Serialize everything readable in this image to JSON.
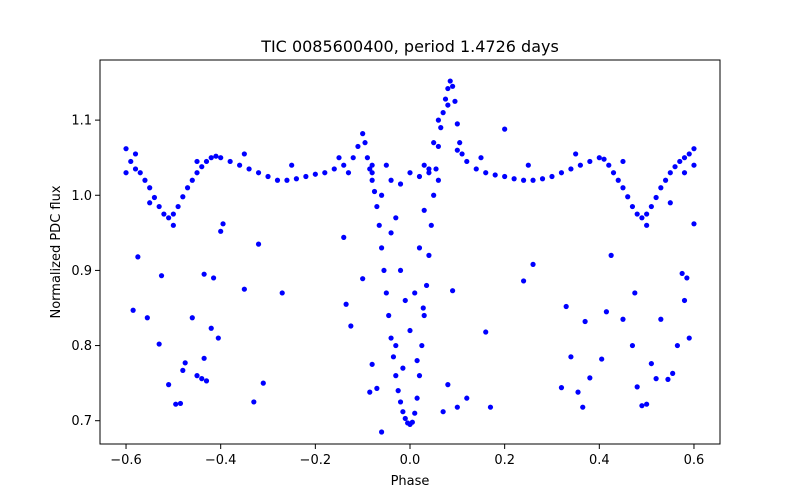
{
  "chart_data": {
    "type": "scatter",
    "title": "TIC 0085600400, period 1.4726 days",
    "xlabel": "Phase",
    "ylabel": "Normalized PDC flux",
    "xlim": [
      -0.655,
      0.655
    ],
    "ylim": [
      0.669,
      1.18
    ],
    "xticks": [
      -0.6,
      -0.4,
      -0.2,
      0.0,
      0.2,
      0.4,
      0.6
    ],
    "xtick_labels": [
      "−0.6",
      "−0.4",
      "−0.2",
      "0.0",
      "0.2",
      "0.4",
      "0.6"
    ],
    "yticks": [
      0.7,
      0.8,
      0.9,
      1.0,
      1.1
    ],
    "ytick_labels": [
      "0.7",
      "0.8",
      "0.9",
      "1.0",
      "1.1"
    ],
    "grid": false,
    "marker_color": "#0000ff",
    "series": [
      {
        "points": [
          [
            -0.6,
            1.062
          ],
          [
            -0.59,
            1.045
          ],
          [
            -0.58,
            1.035
          ],
          [
            -0.57,
            1.03
          ],
          [
            -0.56,
            1.02
          ],
          [
            -0.55,
            1.01
          ],
          [
            -0.54,
            0.997
          ],
          [
            -0.53,
            0.985
          ],
          [
            -0.52,
            0.975
          ],
          [
            -0.51,
            0.97
          ],
          [
            -0.5,
            0.975
          ],
          [
            -0.49,
            0.985
          ],
          [
            -0.48,
            0.998
          ],
          [
            -0.47,
            1.01
          ],
          [
            -0.46,
            1.02
          ],
          [
            -0.45,
            1.03
          ],
          [
            -0.44,
            1.038
          ],
          [
            -0.43,
            1.045
          ],
          [
            -0.42,
            1.05
          ],
          [
            -0.41,
            1.052
          ],
          [
            -0.4,
            1.05
          ],
          [
            -0.38,
            1.045
          ],
          [
            -0.36,
            1.04
          ],
          [
            -0.34,
            1.035
          ],
          [
            -0.32,
            1.03
          ],
          [
            -0.3,
            1.025
          ],
          [
            -0.28,
            1.02
          ],
          [
            -0.26,
            1.02
          ],
          [
            -0.24,
            1.022
          ],
          [
            -0.22,
            1.025
          ],
          [
            -0.2,
            1.028
          ],
          [
            -0.18,
            1.03
          ],
          [
            -0.16,
            1.035
          ],
          [
            -0.14,
            1.04
          ],
          [
            -0.12,
            1.05
          ],
          [
            -0.11,
            1.065
          ],
          [
            -0.1,
            1.082
          ],
          [
            -0.095,
            1.07
          ],
          [
            -0.09,
            1.05
          ],
          [
            -0.085,
            1.035
          ],
          [
            -0.08,
            1.02
          ],
          [
            -0.075,
            1.005
          ],
          [
            -0.07,
            0.985
          ],
          [
            -0.065,
            0.96
          ],
          [
            -0.06,
            0.93
          ],
          [
            -0.055,
            0.9
          ],
          [
            -0.05,
            0.87
          ],
          [
            -0.045,
            0.84
          ],
          [
            -0.04,
            0.81
          ],
          [
            -0.035,
            0.785
          ],
          [
            -0.03,
            0.76
          ],
          [
            -0.025,
            0.74
          ],
          [
            -0.02,
            0.725
          ],
          [
            -0.015,
            0.712
          ],
          [
            -0.01,
            0.703
          ],
          [
            -0.005,
            0.697
          ],
          [
            0.0,
            0.695
          ],
          [
            0.005,
            0.698
          ],
          [
            0.01,
            0.71
          ],
          [
            0.015,
            0.73
          ],
          [
            0.02,
            0.76
          ],
          [
            0.025,
            0.8
          ],
          [
            0.03,
            0.84
          ],
          [
            0.035,
            0.88
          ],
          [
            0.04,
            0.92
          ],
          [
            0.045,
            0.96
          ],
          [
            0.05,
            1.0
          ],
          [
            0.055,
            1.035
          ],
          [
            0.06,
            1.065
          ],
          [
            0.065,
            1.09
          ],
          [
            0.07,
            1.11
          ],
          [
            0.075,
            1.128
          ],
          [
            0.08,
            1.142
          ],
          [
            0.085,
            1.152
          ],
          [
            0.09,
            1.145
          ],
          [
            0.095,
            1.125
          ],
          [
            0.1,
            1.095
          ],
          [
            0.105,
            1.07
          ],
          [
            0.11,
            1.055
          ],
          [
            0.12,
            1.045
          ],
          [
            0.14,
            1.035
          ],
          [
            0.16,
            1.03
          ],
          [
            0.18,
            1.027
          ],
          [
            0.2,
            1.025
          ],
          [
            0.22,
            1.022
          ],
          [
            0.24,
            1.02
          ],
          [
            0.26,
            1.02
          ],
          [
            0.28,
            1.022
          ],
          [
            0.3,
            1.025
          ],
          [
            0.32,
            1.03
          ],
          [
            0.34,
            1.035
          ],
          [
            0.36,
            1.04
          ],
          [
            0.38,
            1.045
          ],
          [
            0.4,
            1.05
          ],
          [
            0.41,
            1.048
          ],
          [
            0.42,
            1.04
          ],
          [
            0.43,
            1.03
          ],
          [
            0.44,
            1.02
          ],
          [
            0.45,
            1.01
          ],
          [
            0.46,
            0.998
          ],
          [
            0.47,
            0.985
          ],
          [
            0.48,
            0.975
          ],
          [
            0.49,
            0.97
          ],
          [
            0.5,
            0.975
          ],
          [
            0.51,
            0.985
          ],
          [
            0.52,
            0.997
          ],
          [
            0.53,
            1.01
          ],
          [
            0.54,
            1.02
          ],
          [
            0.55,
            1.03
          ],
          [
            0.56,
            1.038
          ],
          [
            0.57,
            1.045
          ],
          [
            0.58,
            1.05
          ],
          [
            0.59,
            1.055
          ],
          [
            0.6,
            1.062
          ],
          [
            -0.6,
            1.03
          ],
          [
            -0.58,
            1.055
          ],
          [
            -0.55,
            0.99
          ],
          [
            -0.5,
            0.96
          ],
          [
            -0.45,
            1.045
          ],
          [
            -0.35,
            1.055
          ],
          [
            -0.25,
            1.04
          ],
          [
            -0.15,
            1.05
          ],
          [
            -0.13,
            1.03
          ],
          [
            -0.08,
            1.04
          ],
          [
            -0.06,
            1.0
          ],
          [
            -0.04,
            0.95
          ],
          [
            -0.02,
            0.9
          ],
          [
            -0.01,
            0.86
          ],
          [
            0.0,
            0.82
          ],
          [
            0.01,
            0.87
          ],
          [
            0.02,
            0.93
          ],
          [
            0.03,
            0.98
          ],
          [
            0.04,
            1.03
          ],
          [
            0.05,
            1.07
          ],
          [
            0.06,
            1.1
          ],
          [
            0.08,
            1.12
          ],
          [
            0.1,
            1.06
          ],
          [
            0.15,
            1.05
          ],
          [
            0.25,
            1.04
          ],
          [
            0.35,
            1.055
          ],
          [
            0.45,
            1.045
          ],
          [
            0.5,
            0.96
          ],
          [
            0.55,
            0.99
          ],
          [
            0.58,
            1.03
          ],
          [
            0.6,
            1.04
          ],
          [
            -0.08,
            1.03
          ],
          [
            -0.04,
            1.02
          ],
          [
            -0.02,
            1.015
          ],
          [
            0.0,
            1.03
          ],
          [
            0.02,
            1.025
          ],
          [
            0.04,
            1.035
          ],
          [
            -0.03,
            0.8
          ],
          [
            -0.015,
            0.77
          ],
          [
            0.015,
            0.78
          ],
          [
            0.028,
            0.85
          ],
          [
            -0.05,
            1.04
          ],
          [
            0.03,
            1.04
          ],
          [
            -0.03,
            0.97
          ],
          [
            0.06,
            1.02
          ]
        ]
      },
      {
        "points": [
          [
            -0.575,
            0.918
          ],
          [
            -0.585,
            0.847
          ],
          [
            -0.555,
            0.837
          ],
          [
            -0.53,
            0.802
          ],
          [
            -0.525,
            0.893
          ],
          [
            -0.51,
            0.748
          ],
          [
            -0.495,
            0.722
          ],
          [
            -0.485,
            0.723
          ],
          [
            -0.48,
            0.767
          ],
          [
            -0.475,
            0.777
          ],
          [
            -0.46,
            0.837
          ],
          [
            -0.45,
            0.76
          ],
          [
            -0.44,
            0.756
          ],
          [
            -0.435,
            0.783
          ],
          [
            -0.43,
            0.753
          ],
          [
            -0.435,
            0.895
          ],
          [
            -0.42,
            0.823
          ],
          [
            -0.415,
            0.89
          ],
          [
            -0.405,
            0.81
          ],
          [
            -0.4,
            0.952
          ],
          [
            -0.395,
            0.962
          ],
          [
            -0.35,
            0.875
          ],
          [
            -0.33,
            0.725
          ],
          [
            -0.32,
            0.935
          ],
          [
            -0.31,
            0.75
          ],
          [
            -0.27,
            0.87
          ],
          [
            -0.14,
            0.944
          ],
          [
            -0.135,
            0.855
          ],
          [
            -0.125,
            0.826
          ],
          [
            -0.1,
            0.889
          ],
          [
            -0.085,
            0.738
          ],
          [
            -0.08,
            0.775
          ],
          [
            -0.07,
            0.743
          ],
          [
            -0.06,
            0.685
          ],
          [
            0.07,
            0.712
          ],
          [
            0.08,
            0.748
          ],
          [
            0.09,
            0.873
          ],
          [
            0.1,
            0.718
          ],
          [
            0.12,
            0.73
          ],
          [
            0.16,
            0.818
          ],
          [
            0.17,
            0.718
          ],
          [
            0.2,
            1.088
          ],
          [
            0.24,
            0.886
          ],
          [
            0.26,
            0.908
          ],
          [
            0.32,
            0.744
          ],
          [
            0.33,
            0.852
          ],
          [
            0.34,
            0.785
          ],
          [
            0.355,
            0.738
          ],
          [
            0.365,
            0.718
          ],
          [
            0.37,
            0.832
          ],
          [
            0.38,
            0.757
          ],
          [
            0.405,
            0.782
          ],
          [
            0.415,
            0.845
          ],
          [
            0.425,
            0.92
          ],
          [
            0.45,
            0.835
          ],
          [
            0.47,
            0.8
          ],
          [
            0.475,
            0.87
          ],
          [
            0.48,
            0.745
          ],
          [
            0.49,
            0.72
          ],
          [
            0.5,
            0.722
          ],
          [
            0.51,
            0.776
          ],
          [
            0.52,
            0.756
          ],
          [
            0.53,
            0.835
          ],
          [
            0.545,
            0.755
          ],
          [
            0.555,
            0.763
          ],
          [
            0.565,
            0.8
          ],
          [
            0.575,
            0.896
          ],
          [
            0.58,
            0.86
          ],
          [
            0.585,
            0.89
          ],
          [
            0.59,
            0.81
          ],
          [
            0.6,
            0.962
          ]
        ]
      }
    ]
  }
}
